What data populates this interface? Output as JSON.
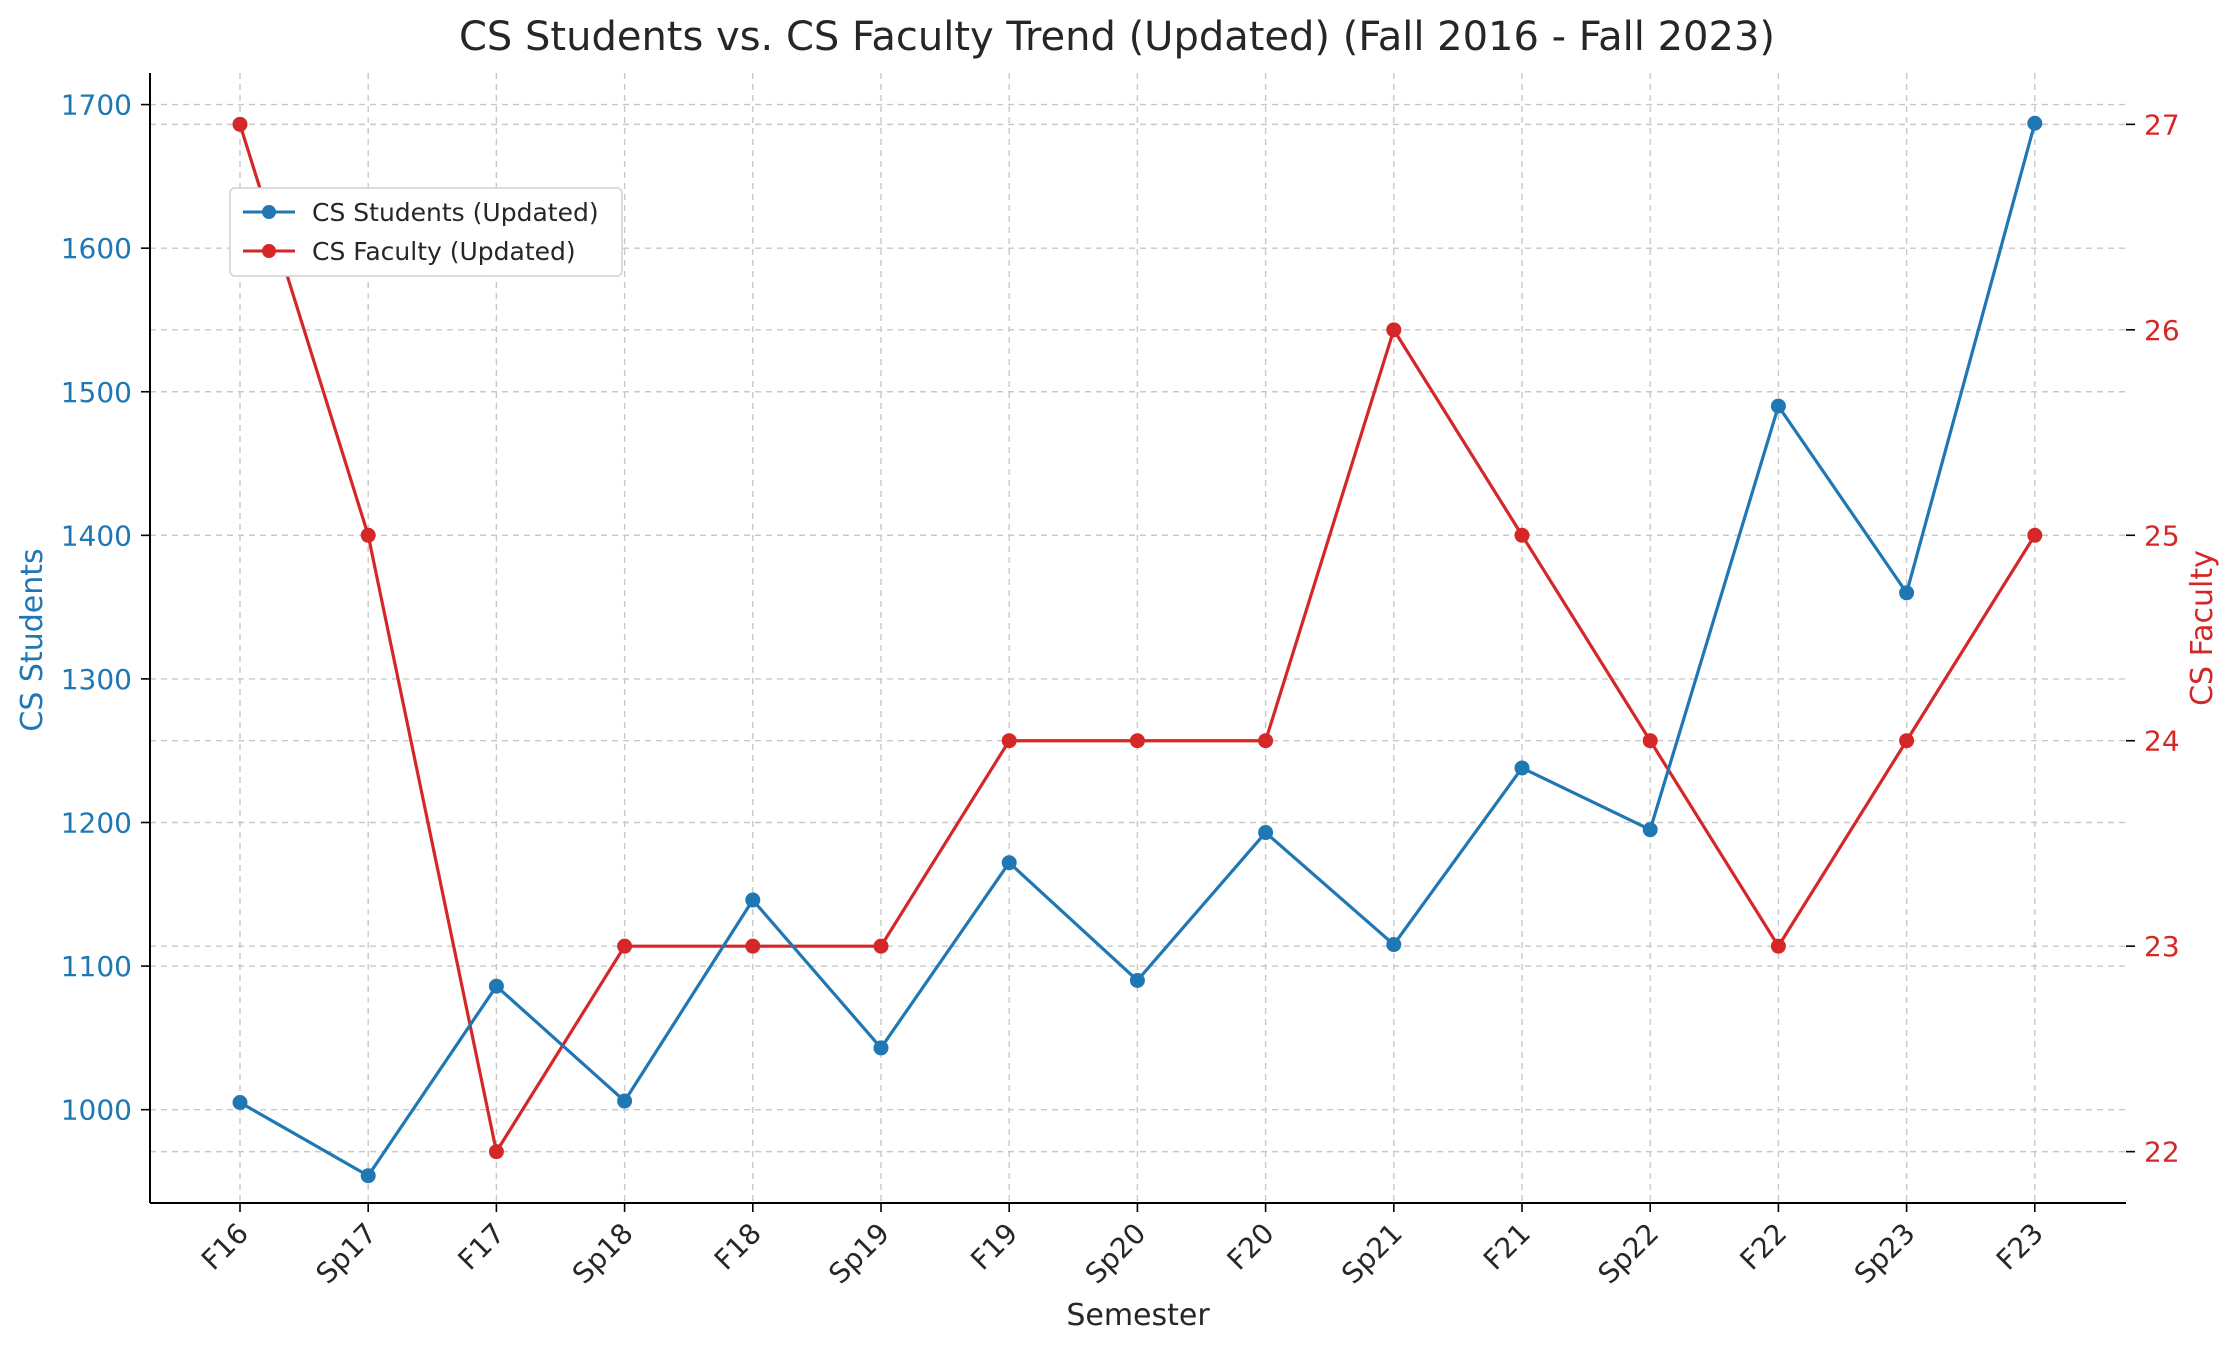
{
  "chart_data": {
    "type": "line",
    "title": "CS Students vs. CS Faculty Trend (Updated) (Fall 2016 - Fall 2023)",
    "xlabel": "Semester",
    "ylabel_left": "CS Students",
    "ylabel_right": "CS Faculty",
    "categories": [
      "F16",
      "Sp17",
      "F17",
      "Sp18",
      "F18",
      "Sp19",
      "F19",
      "Sp20",
      "F20",
      "Sp21",
      "F21",
      "Sp22",
      "F22",
      "Sp23",
      "F23"
    ],
    "series": [
      {
        "name": "CS Students (Updated)",
        "axis": "left",
        "color": "#1f77b4",
        "values": [
          1005,
          954,
          1086,
          1006,
          1146,
          1043,
          1172,
          1090,
          1193,
          1115,
          1238,
          1195,
          1490,
          1360,
          1687
        ]
      },
      {
        "name": "CS Faculty (Updated)",
        "axis": "right",
        "color": "#d62728",
        "values": [
          27,
          25,
          22,
          23,
          23,
          23,
          24,
          24,
          24,
          26,
          25,
          24,
          23,
          24,
          25
        ]
      }
    ],
    "ylim_left": [
      935,
      1722
    ],
    "yticks_left": [
      1000,
      1100,
      1200,
      1300,
      1400,
      1500,
      1600,
      1700
    ],
    "ylim_right": [
      21.75,
      27.25
    ],
    "yticks_right": [
      22,
      23,
      24,
      25,
      26,
      27
    ],
    "grid": true,
    "legend_position": "upper-left"
  }
}
